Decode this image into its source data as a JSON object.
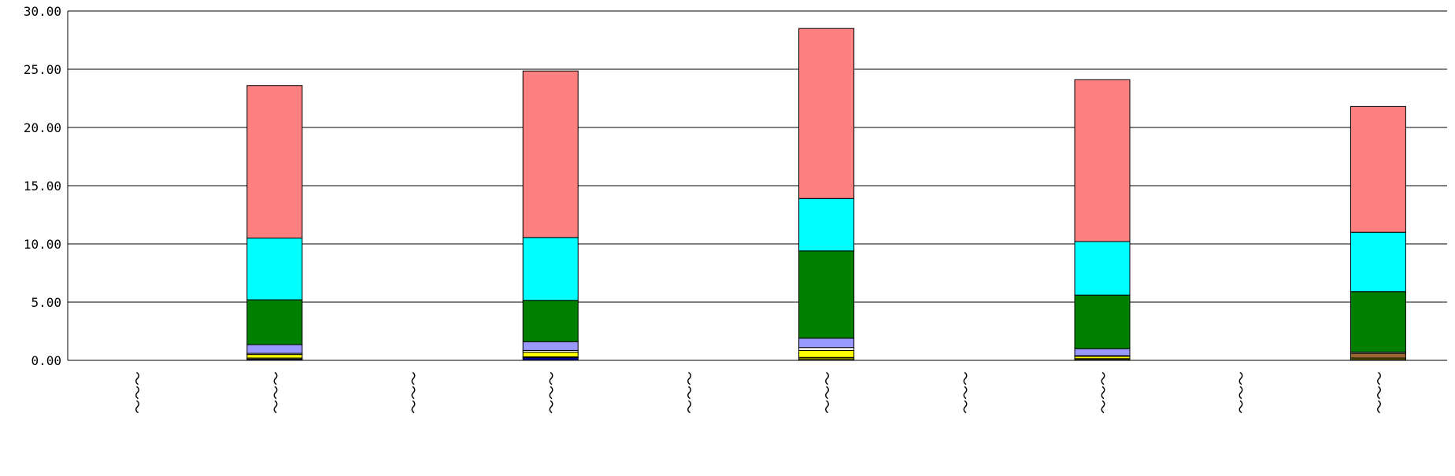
{
  "chart_data": {
    "type": "bar",
    "stacked": true,
    "title": "",
    "xlabel": "",
    "ylabel": "",
    "ylim": [
      0,
      30
    ],
    "yticks": [
      "0.00",
      "5.00",
      "10.00",
      "15.00",
      "20.00",
      "25.00",
      "30.00"
    ],
    "grid": true,
    "legend": "none",
    "categories": [
      "〜〜〜",
      "〜〜〜",
      "〜〜〜",
      "〜〜〜",
      "〜〜〜",
      "〜〜〜",
      "〜〜〜",
      "〜〜〜",
      "〜〜〜",
      "〜〜〜"
    ],
    "series": [
      {
        "color": "#000080",
        "values": [
          0,
          0.1,
          0,
          0.25,
          0,
          0.05,
          0,
          0.05,
          0,
          0.05
        ]
      },
      {
        "color": "#808000",
        "values": [
          0,
          0.1,
          0,
          0.05,
          0,
          0.2,
          0,
          0.1,
          0,
          0.15
        ]
      },
      {
        "color": "#996633",
        "values": [
          0,
          0,
          0,
          0,
          0,
          0,
          0,
          0,
          0,
          0.4
        ]
      },
      {
        "color": "#ffff00",
        "values": [
          0,
          0.3,
          0,
          0.4,
          0,
          0.6,
          0,
          0.2,
          0,
          0
        ]
      },
      {
        "color": "#ffffff",
        "values": [
          0,
          0.1,
          0,
          0.15,
          0,
          0.25,
          0,
          0.05,
          0,
          0.1
        ]
      },
      {
        "color": "#9999ff",
        "values": [
          0,
          0.75,
          0,
          0.75,
          0,
          0.8,
          0,
          0.6,
          0,
          0
        ]
      },
      {
        "color": "#008000",
        "values": [
          0,
          3.85,
          0,
          3.55,
          0,
          7.5,
          0,
          4.6,
          0,
          5.2
        ]
      },
      {
        "color": "#00ffff",
        "values": [
          0,
          5.3,
          0,
          5.4,
          0,
          4.5,
          0,
          4.6,
          0,
          5.1
        ]
      },
      {
        "color": "#ff8080",
        "values": [
          0,
          13.1,
          0,
          14.3,
          0,
          14.6,
          0,
          13.9,
          0,
          10.8
        ]
      }
    ]
  }
}
